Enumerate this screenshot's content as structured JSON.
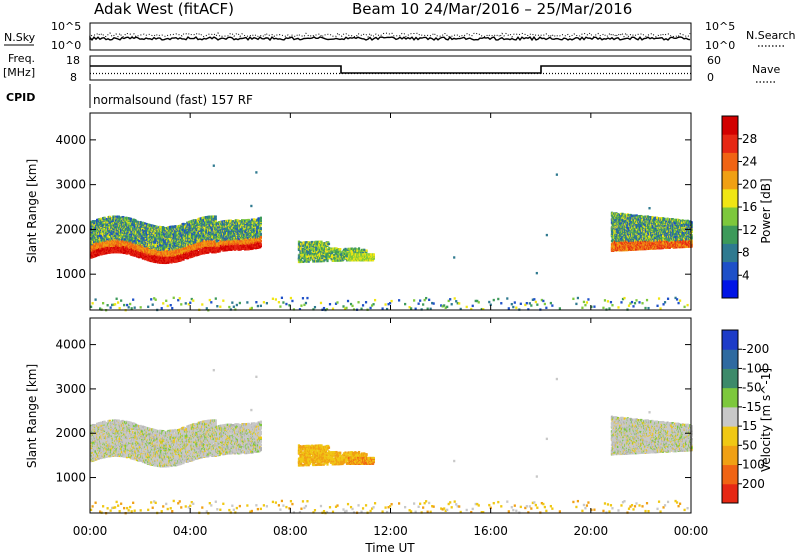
{
  "header": {
    "station": "Adak West (fitACF)",
    "beam_info": "Beam 10  24/Mar/2016 – 25/Mar/2016"
  },
  "top_panels": {
    "nsky_label": "N.Sky",
    "nsearch_label": "N.Search",
    "nsky_ticks": [
      "10^5",
      "10^0"
    ],
    "freq_label_1": "Freq.",
    "freq_label_2": "[MHz]",
    "freq_ticks": [
      "18",
      "8"
    ],
    "nave_label": "Nave",
    "nave_ticks": [
      "60",
      "0"
    ],
    "cpid_label": "CPID",
    "cpid_text": "normalsound (fast) 157 RF"
  },
  "chart_data": [
    {
      "type": "heatmap",
      "name": "power",
      "ylabel": "Slant Range [km]",
      "xlabel": "",
      "yticks": [
        1000,
        2000,
        3000,
        4000
      ],
      "ylim": [
        200,
        4600
      ],
      "colorbar_label": "Power [dB]",
      "colorbar_ticks": [
        "4",
        "8",
        "12",
        "16",
        "20",
        "24",
        "28"
      ],
      "colorbar_colors": [
        "#0014e6",
        "#1e50c8",
        "#2f7a90",
        "#3d9a5a",
        "#7dc83c",
        "#f0e614",
        "#f0a014",
        "#f06414",
        "#e62814",
        "#d20000"
      ]
    },
    {
      "type": "heatmap",
      "name": "velocity",
      "ylabel": "Slant Range [km]",
      "xlabel": "Time UT",
      "yticks": [
        1000,
        2000,
        3000,
        4000
      ],
      "ylim": [
        200,
        4600
      ],
      "xticks": [
        "00:00",
        "04:00",
        "08:00",
        "12:00",
        "16:00",
        "20:00",
        "00:00"
      ],
      "colorbar_label": "Velocity [m s^-1]",
      "colorbar_ticks": [
        "200",
        "100",
        "50",
        "15",
        "-15",
        "-50",
        "-100",
        "-200"
      ],
      "colorbar_colors": [
        "#1e3cc8",
        "#2f6aa0",
        "#3d8a6a",
        "#7dc83c",
        "#c8c8c8",
        "#f0c814",
        "#f0a014",
        "#f06414",
        "#e62814"
      ]
    }
  ]
}
